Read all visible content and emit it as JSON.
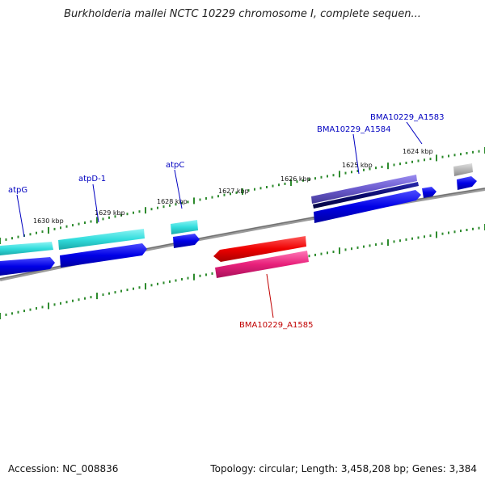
{
  "header": {
    "title": "Burkholderia mallei NCTC 10229 chromosome I, complete sequen..."
  },
  "footer": {
    "accession": "Accession: NC_008836",
    "summary": "Topology: circular; Length: 3,458,208 bp; Genes: 3,384"
  },
  "map": {
    "scale_labels": [
      "1630 kbp",
      "1629 kbp",
      "1628 kbp",
      "1627 kbp",
      "1626 kbp",
      "1625 kbp",
      "1624 kbp"
    ],
    "gene_labels": [
      {
        "text": "atpG",
        "color": "#0000c0"
      },
      {
        "text": "atpD-1",
        "color": "#0000c0"
      },
      {
        "text": "atpC",
        "color": "#0000c0"
      },
      {
        "text": "BMA10229_A1584",
        "color": "#0000c0"
      },
      {
        "text": "BMA10229_A1583",
        "color": "#0000c0"
      },
      {
        "text": "BMA10229_A1585",
        "color": "#c00000"
      }
    ],
    "colors": {
      "backbone": "#808080",
      "tick": "#2e8b2e",
      "cds_forward": "#0000e6",
      "atp_gene": "#33dddd",
      "reverse_gene": "#ee0000",
      "reverse_cds": "#e8207a",
      "other_gene": "#6a5acd",
      "other_cds": "#0a0a6e",
      "unknown_gene": "#b5b5b5"
    }
  }
}
